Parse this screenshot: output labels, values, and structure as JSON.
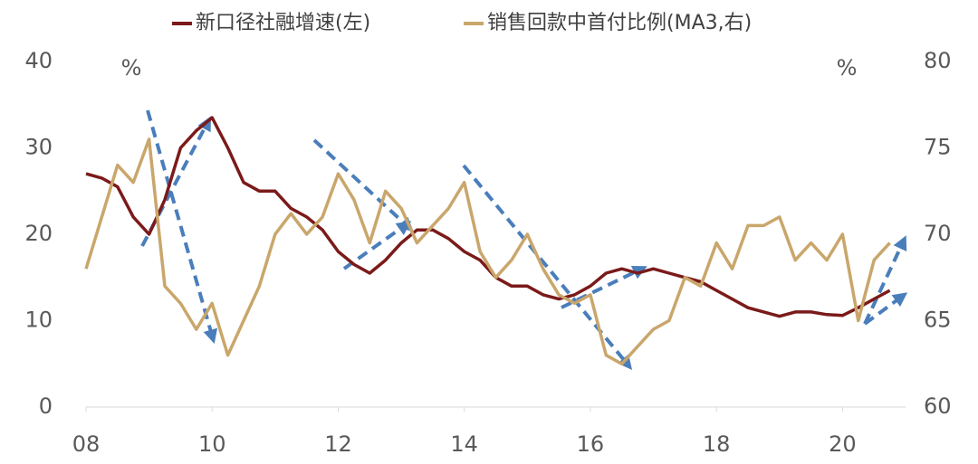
{
  "chart_data": {
    "type": "line",
    "x": [
      2008,
      2008.25,
      2008.5,
      2008.75,
      2009,
      2009.25,
      2009.5,
      2009.75,
      2010,
      2010.25,
      2010.5,
      2010.75,
      2011,
      2011.25,
      2011.5,
      2011.75,
      2012,
      2012.25,
      2012.5,
      2012.75,
      2013,
      2013.25,
      2013.5,
      2013.75,
      2014,
      2014.25,
      2014.5,
      2014.75,
      2015,
      2015.25,
      2015.5,
      2015.75,
      2016,
      2016.25,
      2016.5,
      2016.75,
      2017,
      2017.25,
      2017.5,
      2017.75,
      2018,
      2018.25,
      2018.5,
      2018.75,
      2019,
      2019.25,
      2019.5,
      2019.75,
      2020,
      2020.25,
      2020.5,
      2020.75
    ],
    "series": [
      {
        "name": "新口径社融增速(左)",
        "color": "#7b1a1a",
        "values": [
          27,
          26.5,
          25.5,
          22,
          20,
          24,
          30,
          32,
          33.5,
          30,
          26,
          25,
          25,
          23,
          22,
          20.5,
          18,
          16.5,
          15.5,
          17,
          19,
          20.5,
          20.5,
          19.5,
          18,
          17,
          15,
          14,
          14,
          13,
          12.5,
          13,
          14,
          15.5,
          16,
          15.5,
          16,
          15.5,
          15,
          14.5,
          13.5,
          12.5,
          11.5,
          11,
          10.5,
          11,
          11,
          10.7,
          10.6,
          11.5,
          12.5,
          13.5
        ]
      },
      {
        "name": "销售回款中首付比例(MA3,右)",
        "color": "#c9a66b",
        "axis": "y2",
        "values": [
          68,
          71,
          74,
          73,
          75.5,
          67,
          66,
          64.5,
          66,
          63,
          65,
          67,
          70,
          71.2,
          70,
          71,
          73.5,
          72,
          69.5,
          72.5,
          71.5,
          69.5,
          70.5,
          71.5,
          73,
          69,
          67.5,
          68.5,
          70,
          68,
          66.5,
          66,
          66.5,
          63,
          62.5,
          63.5,
          64.5,
          65,
          67.5,
          67,
          69.5,
          68,
          70.5,
          70.5,
          71,
          68.5,
          69.5,
          68.5,
          70,
          65,
          68.5,
          69.5
        ]
      }
    ],
    "xlim": [
      2008,
      2021
    ],
    "xticks": [
      {
        "value": 2008,
        "label": "08"
      },
      {
        "value": 2010,
        "label": "10"
      },
      {
        "value": 2012,
        "label": "12"
      },
      {
        "value": 2014,
        "label": "14"
      },
      {
        "value": 2016,
        "label": "16"
      },
      {
        "value": 2018,
        "label": "18"
      },
      {
        "value": 2020,
        "label": "20"
      }
    ],
    "ylim": [
      0,
      40
    ],
    "yticks": [
      0,
      10,
      20,
      30,
      40
    ],
    "y2lim": [
      60,
      80
    ],
    "y2ticks": [
      60,
      65,
      70,
      75,
      80
    ],
    "y_unit": "%",
    "y2_unit": "%"
  }
}
